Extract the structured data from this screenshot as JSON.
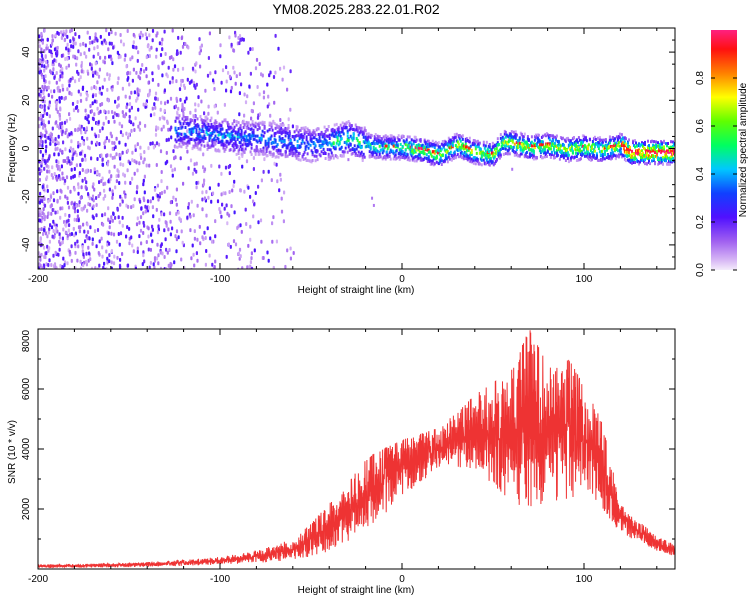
{
  "title": "YM08.2025.283.22.01.R02",
  "chart_data": [
    {
      "type": "heatmap",
      "xlabel": "Height of straight line (km)",
      "ylabel": "Frequency (Hz)",
      "xlim": [
        -200,
        150
      ],
      "ylim": [
        -50,
        50
      ],
      "x_ticks": [
        -200,
        -100,
        0,
        100
      ],
      "y_ticks": [
        -40,
        -20,
        0,
        20,
        40
      ],
      "ridge": {
        "x": [
          -120,
          -110,
          -100,
          -90,
          -80,
          -70,
          -60,
          -50,
          -40,
          -30,
          -20,
          -10,
          0,
          10,
          20,
          30,
          40,
          50,
          55,
          60,
          70,
          80,
          90,
          100,
          110,
          120,
          125,
          130,
          140,
          150
        ],
        "frequency_hz": [
          8,
          7,
          6,
          5,
          5,
          4,
          3,
          2,
          3,
          5,
          2,
          1,
          1,
          0,
          -2,
          2,
          -1,
          -2,
          3,
          3,
          1,
          2,
          0,
          1,
          0,
          2,
          -1,
          -1,
          -1,
          -1
        ]
      },
      "colorbar": {
        "label": "Normalized spectral amplitude",
        "range": [
          0,
          1
        ],
        "ticks": [
          "0.0",
          "0.2",
          "0.4",
          "0.6",
          "0.8"
        ]
      }
    },
    {
      "type": "line",
      "xlabel": "Height of straight line (km)",
      "ylabel": "SNR (10 * v/v)",
      "xlim": [
        -200,
        150
      ],
      "ylim": [
        0,
        8000
      ],
      "x_ticks": [
        -200,
        -100,
        0,
        100
      ],
      "y_ticks": [
        2000,
        4000,
        6000,
        8000
      ],
      "series": [
        {
          "name": "SNR",
          "color": "#ee3333",
          "envelope": {
            "x": [
              -200,
              -150,
              -120,
              -100,
              -80,
              -60,
              -50,
              -40,
              -30,
              -20,
              -10,
              0,
              10,
              20,
              30,
              40,
              50,
              60,
              70,
              80,
              90,
              100,
              110,
              115,
              120,
              130,
              140,
              150
            ],
            "lower": [
              30,
              60,
              100,
              150,
              200,
              300,
              400,
              600,
              900,
              1300,
              1800,
              2400,
              2900,
              3300,
              3400,
              3300,
              2800,
              2200,
              2000,
              2200,
              2300,
              2400,
              2000,
              1500,
              1200,
              900,
              600,
              400
            ],
            "upper": [
              150,
              200,
              300,
              400,
              600,
              1000,
              1500,
              2200,
              2800,
              3700,
              4000,
              4300,
              4500,
              4700,
              5200,
              5800,
              6200,
              6600,
              8000,
              6800,
              7200,
              6100,
              4900,
              3500,
              2200,
              1600,
              1100,
              800
            ]
          }
        }
      ]
    }
  ]
}
